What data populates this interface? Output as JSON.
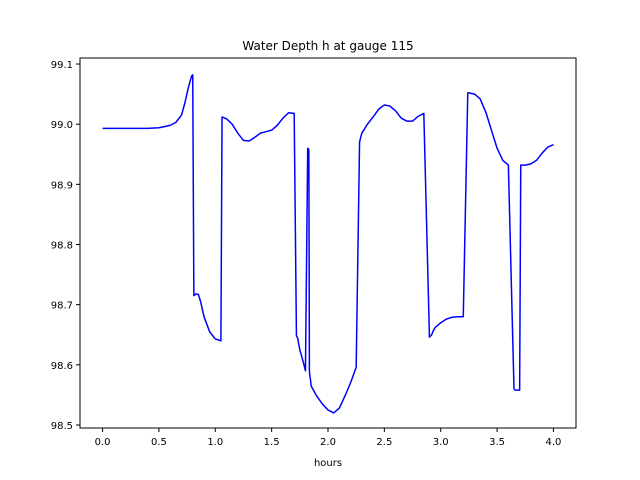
{
  "chart_data": {
    "type": "line",
    "title": "Water Depth h at gauge 115",
    "xlabel": "hours",
    "ylabel": "",
    "xlim": [
      -0.2,
      4.2
    ],
    "ylim": [
      98.495,
      99.11
    ],
    "xticks": [
      0.0,
      0.5,
      1.0,
      1.5,
      2.0,
      2.5,
      3.0,
      3.5,
      4.0
    ],
    "xtick_labels": [
      "0.0",
      "0.5",
      "1.0",
      "1.5",
      "2.0",
      "2.5",
      "3.0",
      "3.5",
      "4.0"
    ],
    "yticks": [
      98.5,
      98.6,
      98.7,
      98.8,
      98.9,
      99.0,
      99.1
    ],
    "ytick_labels": [
      "98.5",
      "98.6",
      "98.7",
      "98.8",
      "98.9",
      "99.0",
      "99.1"
    ],
    "grid": false,
    "legend": "none",
    "series": [
      {
        "color": "#0000ff",
        "x": [
          0.0,
          0.2,
          0.4,
          0.5,
          0.6,
          0.65,
          0.7,
          0.73,
          0.76,
          0.79,
          0.8,
          0.81,
          0.83,
          0.85,
          0.87,
          0.9,
          0.95,
          1.0,
          1.05,
          1.06,
          1.1,
          1.15,
          1.2,
          1.25,
          1.3,
          1.35,
          1.4,
          1.5,
          1.55,
          1.6,
          1.65,
          1.7,
          1.72,
          1.73,
          1.75,
          1.78,
          1.8,
          1.82,
          1.83,
          1.835,
          1.84,
          1.845,
          1.85,
          1.9,
          1.95,
          2.0,
          2.05,
          2.1,
          2.15,
          2.2,
          2.25,
          2.28,
          2.29,
          2.3,
          2.35,
          2.4,
          2.45,
          2.5,
          2.55,
          2.6,
          2.65,
          2.7,
          2.75,
          2.8,
          2.85,
          2.9,
          2.92,
          2.93,
          2.95,
          3.0,
          3.05,
          3.1,
          3.15,
          3.2,
          3.24,
          3.25,
          3.3,
          3.35,
          3.4,
          3.45,
          3.5,
          3.55,
          3.6,
          3.65,
          3.66,
          3.67,
          3.7,
          3.71,
          3.75,
          3.8,
          3.85,
          3.9,
          3.95,
          4.0
        ],
        "y": [
          98.993,
          98.993,
          98.993,
          98.994,
          98.998,
          99.003,
          99.015,
          99.035,
          99.06,
          99.08,
          99.082,
          98.715,
          98.718,
          98.717,
          98.705,
          98.68,
          98.655,
          98.643,
          98.64,
          99.012,
          99.009,
          99.0,
          98.985,
          98.973,
          98.972,
          98.978,
          98.985,
          98.99,
          98.998,
          99.01,
          99.019,
          99.018,
          98.648,
          98.645,
          98.625,
          98.605,
          98.59,
          98.96,
          98.958,
          98.59,
          98.58,
          98.575,
          98.565,
          98.548,
          98.535,
          98.525,
          98.52,
          98.528,
          98.548,
          98.57,
          98.596,
          98.97,
          98.978,
          98.985,
          99.0,
          99.012,
          99.025,
          99.032,
          99.03,
          99.022,
          99.01,
          99.005,
          99.005,
          99.013,
          99.018,
          98.646,
          98.65,
          98.655,
          98.662,
          98.67,
          98.676,
          98.679,
          98.68,
          98.68,
          99.052,
          99.052,
          99.05,
          99.042,
          99.02,
          98.99,
          98.96,
          98.94,
          98.932,
          98.56,
          98.558,
          98.558,
          98.558,
          98.932,
          98.932,
          98.934,
          98.94,
          98.952,
          98.962,
          98.966
        ]
      }
    ]
  }
}
